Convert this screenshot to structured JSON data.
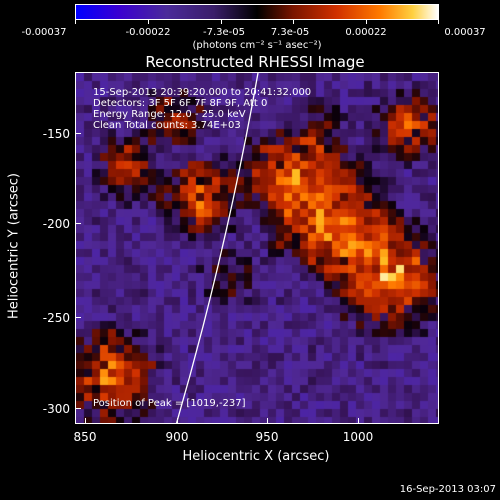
{
  "colorbar": {
    "ticks": [
      "-0.00037",
      "-0.00022",
      "-7.3e-05",
      "7.3e-05",
      "0.00022",
      "0.00037"
    ],
    "units": "(photons cm⁻² s⁻¹ asec⁻²)"
  },
  "title": "Reconstructed RHESSI Image",
  "annotations": {
    "time": "15-Sep-2013 20:39:20.000 to 20:41:32.000",
    "detectors": "Detectors: 3F 5F 6F 7F 8F 9F, Att 0",
    "energy": "Energy Range: 12.0 - 25.0 keV",
    "clean": "Clean     Total counts: 3.74E+03",
    "peak": "Position of Peak = [1019,-237]"
  },
  "axes": {
    "xlabel": "Heliocentric X (arcsec)",
    "ylabel": "Heliocentric Y (arcsec)",
    "xticks": [
      "850",
      "900",
      "950",
      "1000"
    ],
    "yticks": [
      "-150",
      "-200",
      "-250",
      "-300"
    ]
  },
  "datestamp": "16-Sep-2013 03:07"
}
